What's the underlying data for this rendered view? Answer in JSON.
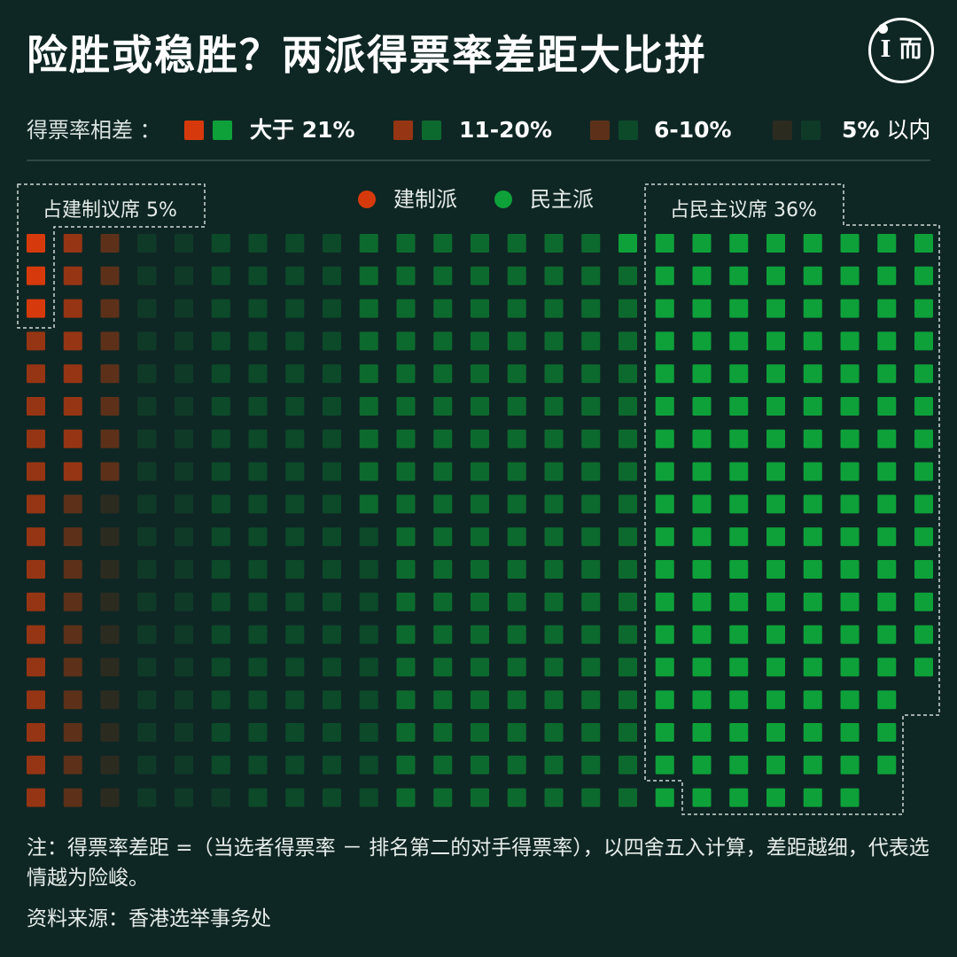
{
  "title": "险胜或稳胜？两派得票率差距大比拼",
  "logo": {
    "text": "I 而",
    "icon": "initium-logo"
  },
  "legend": {
    "label": "得票率相差 ：",
    "items": [
      {
        "text": "大于 21%",
        "colors": [
          "#d63a0c",
          "#0ea13a"
        ]
      },
      {
        "text": "11-20%",
        "colors": [
          "#963513",
          "#0d6a2e"
        ]
      },
      {
        "text": "6-10%",
        "colors": [
          "#5d3119",
          "#0c4a2a"
        ]
      },
      {
        "text": "5%",
        "suffix": " 以内",
        "colors": [
          "#2c2b20",
          "#0f3a28"
        ]
      }
    ]
  },
  "parties": [
    {
      "name": "建制派",
      "color": "#d63a0c"
    },
    {
      "name": "民主派",
      "color": "#0ea13a"
    }
  ],
  "callouts": {
    "pro_establishment": "占建制议席 5%",
    "pro_democracy": "占民主议席 36%"
  },
  "chart_data": {
    "type": "waffle",
    "title": "险胜或稳胜？两派得票率差距大比拼",
    "categories": [
      "大于 21%",
      "11-20%",
      "6-10%",
      "5% 以内"
    ],
    "series": [
      {
        "name": "建制派",
        "values": [
          3,
          23,
          18,
          23
        ]
      },
      {
        "name": "民主派",
        "values": [
          140,
          134,
          80,
          37
        ]
      }
    ],
    "callouts": [
      {
        "text": "占建制议席 5%",
        "series": "建制派",
        "category": "大于 21%"
      },
      {
        "text": "占民主议席 36%",
        "series": "民主派",
        "category": "大于 21%"
      }
    ],
    "colors": {
      "建制派": [
        "#d63a0c",
        "#963513",
        "#5d3119",
        "#2c2b20"
      ],
      "民主派": [
        "#0ea13a",
        "#0d6a2e",
        "#0c4a2a",
        "#0f3a28"
      ]
    }
  },
  "note": "注：得票率差距 =（当选者得票率 － 排名第二的对手得票率），以四舍五入计算，差距越细，代表选情越为险峻。",
  "source": "资料来源：香港选举事务处"
}
